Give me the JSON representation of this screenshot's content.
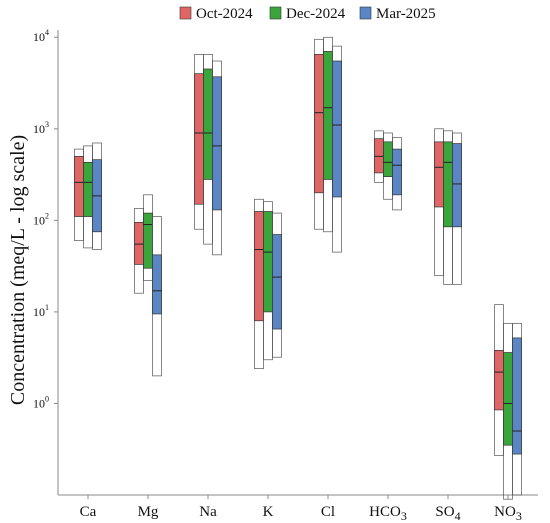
{
  "chart_data": {
    "type": "box",
    "title": "",
    "xlabel": "",
    "ylabel": "Concentration (meq/L - log scale)",
    "y_scale": "log",
    "ylim": [
      0.1,
      12000
    ],
    "y_ticks": [
      {
        "value": 1,
        "base": "10",
        "exp": "0"
      },
      {
        "value": 10,
        "base": "10",
        "exp": "1"
      },
      {
        "value": 100,
        "base": "10",
        "exp": "2"
      },
      {
        "value": 1000,
        "base": "10",
        "exp": "3"
      },
      {
        "value": 10000,
        "base": "10",
        "exp": "4"
      }
    ],
    "legend_position": "top",
    "grid": false,
    "categories": [
      {
        "base": "Ca",
        "sub": ""
      },
      {
        "base": "Mg",
        "sub": ""
      },
      {
        "base": "Na",
        "sub": ""
      },
      {
        "base": "K",
        "sub": ""
      },
      {
        "base": "Cl",
        "sub": ""
      },
      {
        "base": "HCO",
        "sub": "3"
      },
      {
        "base": "SO",
        "sub": "4"
      },
      {
        "base": "NO",
        "sub": "3"
      }
    ],
    "series": [
      {
        "name": "Oct-2024",
        "color": "#e06666",
        "boxes": [
          {
            "min": 60,
            "q1": 110,
            "median": 260,
            "q3": 500,
            "max": 600
          },
          {
            "min": 16,
            "q1": 33,
            "median": 55,
            "q3": 95,
            "max": 135
          },
          {
            "min": 80,
            "q1": 150,
            "median": 900,
            "q3": 4000,
            "max": 6500
          },
          {
            "min": 2.4,
            "q1": 8,
            "median": 48,
            "q3": 125,
            "max": 170
          },
          {
            "min": 80,
            "q1": 200,
            "median": 1500,
            "q3": 6500,
            "max": 9500
          },
          {
            "min": 260,
            "q1": 330,
            "median": 500,
            "q3": 780,
            "max": 950
          },
          {
            "min": 25,
            "q1": 140,
            "median": 380,
            "q3": 720,
            "max": 1000
          },
          {
            "min": 0.27,
            "q1": 0.85,
            "median": 2.2,
            "q3": 3.8,
            "max": 12
          }
        ]
      },
      {
        "name": "Dec-2024",
        "color": "#3aa53a",
        "boxes": [
          {
            "min": 50,
            "q1": 110,
            "median": 260,
            "q3": 430,
            "max": 650
          },
          {
            "min": 22,
            "q1": 30,
            "median": 90,
            "q3": 120,
            "max": 190
          },
          {
            "min": 55,
            "q1": 280,
            "median": 900,
            "q3": 4500,
            "max": 6500
          },
          {
            "min": 3,
            "q1": 10,
            "median": 45,
            "q3": 125,
            "max": 160
          },
          {
            "min": 75,
            "q1": 280,
            "median": 1700,
            "q3": 7000,
            "max": 10000
          },
          {
            "min": 170,
            "q1": 300,
            "median": 430,
            "q3": 720,
            "max": 900
          },
          {
            "min": 20,
            "q1": 85,
            "median": 430,
            "q3": 720,
            "max": 950
          },
          {
            "min": 0.09,
            "q1": 0.35,
            "median": 1.0,
            "q3": 3.6,
            "max": 7.5
          }
        ]
      },
      {
        "name": "Mar-2025",
        "color": "#5b86c5",
        "boxes": [
          {
            "min": 48,
            "q1": 75,
            "median": 185,
            "q3": 460,
            "max": 700
          },
          {
            "min": 2,
            "q1": 9.5,
            "median": 17,
            "q3": 42,
            "max": 110
          },
          {
            "min": 42,
            "q1": 130,
            "median": 650,
            "q3": 3700,
            "max": 5500
          },
          {
            "min": 3.2,
            "q1": 6.5,
            "median": 24,
            "q3": 70,
            "max": 120
          },
          {
            "min": 45,
            "q1": 180,
            "median": 1100,
            "q3": 5500,
            "max": 8000
          },
          {
            "min": 130,
            "q1": 190,
            "median": 400,
            "q3": 600,
            "max": 800
          },
          {
            "min": 20,
            "q1": 85,
            "median": 250,
            "q3": 690,
            "max": 900
          },
          {
            "min": 0.1,
            "q1": 0.28,
            "median": 0.5,
            "q3": 5.2,
            "max": 7.5
          }
        ]
      }
    ]
  }
}
